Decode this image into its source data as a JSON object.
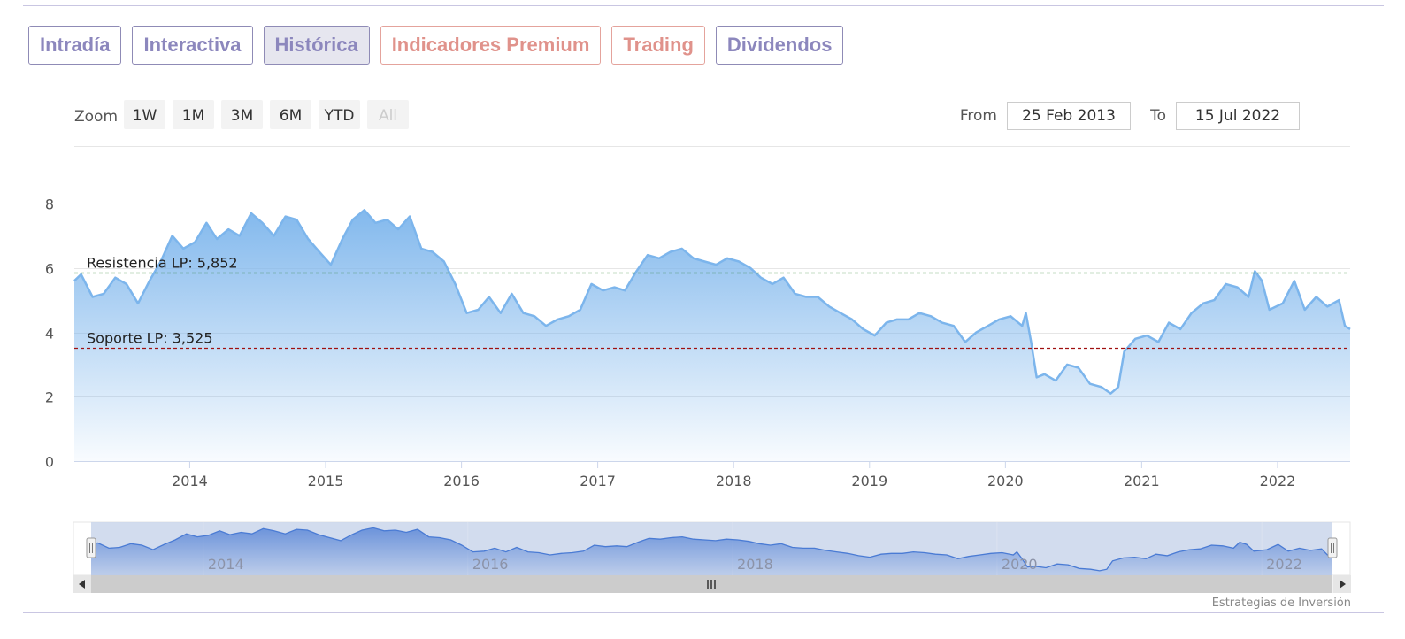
{
  "tabs": [
    {
      "label": "Intradía",
      "style": "purple",
      "active": false
    },
    {
      "label": "Interactiva",
      "style": "purple",
      "active": false
    },
    {
      "label": "Histórica",
      "style": "purple",
      "active": true
    },
    {
      "label": "Indicadores Premium",
      "style": "red",
      "active": false
    },
    {
      "label": "Trading",
      "style": "red",
      "active": false
    },
    {
      "label": "Dividendos",
      "style": "purple",
      "active": false
    }
  ],
  "range_selector": {
    "zoom_label": "Zoom",
    "buttons": [
      {
        "label": "1W",
        "disabled": false
      },
      {
        "label": "1M",
        "disabled": false
      },
      {
        "label": "3M",
        "disabled": false
      },
      {
        "label": "6M",
        "disabled": false
      },
      {
        "label": "YTD",
        "disabled": false
      },
      {
        "label": "All",
        "disabled": true
      }
    ],
    "from_label": "From",
    "from_value": "25 Feb 2013",
    "to_label": "To",
    "to_value": "15 Jul 2022"
  },
  "credits": "Estrategias de Inversión",
  "colors": {
    "line": "#7cb5ec",
    "area_top": "#7cb5ec",
    "resistance": "#1d7a1d",
    "support": "#a01010",
    "navigator_mask": "#c7d3ea",
    "navigator_series": "#4a7bd4",
    "scrollbar": "#cccccc"
  },
  "chart_data": {
    "type": "area",
    "title": "",
    "xlabel": "",
    "ylabel": "",
    "ylim": [
      0,
      8
    ],
    "y_ticks": [
      0,
      2,
      4,
      6,
      8
    ],
    "xlim": [
      "2013-02-25",
      "2022-07-15"
    ],
    "x_tick_labels": [
      "2014",
      "2015",
      "2016",
      "2017",
      "2018",
      "2019",
      "2020",
      "2021",
      "2022"
    ],
    "navigator_tick_labels": [
      "2014",
      "2016",
      "2018",
      "2020",
      "2022"
    ],
    "grid": true,
    "legend": false,
    "plot_lines": [
      {
        "label": "Resistencia LP: 5,852",
        "value": 5.852,
        "style": "dashed"
      },
      {
        "label": "Soporte LP: 3,525",
        "value": 3.525,
        "style": "dashed"
      }
    ],
    "series": [
      {
        "points": [
          [
            "2013-02-25",
            5.6
          ],
          [
            "2013-03-15",
            5.8
          ],
          [
            "2013-04-15",
            5.1
          ],
          [
            "2013-05-15",
            5.2
          ],
          [
            "2013-06-15",
            5.7
          ],
          [
            "2013-07-15",
            5.5
          ],
          [
            "2013-08-15",
            4.9
          ],
          [
            "2013-09-15",
            5.6
          ],
          [
            "2013-10-15",
            6.2
          ],
          [
            "2013-11-15",
            7.0
          ],
          [
            "2013-12-15",
            6.6
          ],
          [
            "2014-01-15",
            6.8
          ],
          [
            "2014-02-15",
            7.4
          ],
          [
            "2014-03-15",
            6.9
          ],
          [
            "2014-04-15",
            7.2
          ],
          [
            "2014-05-15",
            7.0
          ],
          [
            "2014-06-15",
            7.7
          ],
          [
            "2014-07-15",
            7.4
          ],
          [
            "2014-08-15",
            7.0
          ],
          [
            "2014-09-15",
            7.6
          ],
          [
            "2014-10-15",
            7.5
          ],
          [
            "2014-11-15",
            6.9
          ],
          [
            "2014-12-15",
            6.5
          ],
          [
            "2015-01-15",
            6.1
          ],
          [
            "2015-02-15",
            6.9
          ],
          [
            "2015-03-15",
            7.5
          ],
          [
            "2015-04-15",
            7.8
          ],
          [
            "2015-05-15",
            7.4
          ],
          [
            "2015-06-15",
            7.5
          ],
          [
            "2015-07-15",
            7.2
          ],
          [
            "2015-08-15",
            7.6
          ],
          [
            "2015-09-15",
            6.6
          ],
          [
            "2015-10-15",
            6.5
          ],
          [
            "2015-11-15",
            6.2
          ],
          [
            "2015-12-15",
            5.5
          ],
          [
            "2016-01-15",
            4.6
          ],
          [
            "2016-02-15",
            4.7
          ],
          [
            "2016-03-15",
            5.1
          ],
          [
            "2016-04-15",
            4.6
          ],
          [
            "2016-05-15",
            5.2
          ],
          [
            "2016-06-15",
            4.6
          ],
          [
            "2016-07-15",
            4.5
          ],
          [
            "2016-08-15",
            4.2
          ],
          [
            "2016-09-15",
            4.4
          ],
          [
            "2016-10-15",
            4.5
          ],
          [
            "2016-11-15",
            4.7
          ],
          [
            "2016-12-15",
            5.5
          ],
          [
            "2017-01-15",
            5.3
          ],
          [
            "2017-02-15",
            5.4
          ],
          [
            "2017-03-15",
            5.3
          ],
          [
            "2017-04-15",
            5.9
          ],
          [
            "2017-05-15",
            6.4
          ],
          [
            "2017-06-15",
            6.3
          ],
          [
            "2017-07-15",
            6.5
          ],
          [
            "2017-08-15",
            6.6
          ],
          [
            "2017-09-15",
            6.3
          ],
          [
            "2017-10-15",
            6.2
          ],
          [
            "2017-11-15",
            6.1
          ],
          [
            "2017-12-15",
            6.3
          ],
          [
            "2018-01-15",
            6.2
          ],
          [
            "2018-02-15",
            6.0
          ],
          [
            "2018-03-15",
            5.7
          ],
          [
            "2018-04-15",
            5.5
          ],
          [
            "2018-05-15",
            5.7
          ],
          [
            "2018-06-15",
            5.2
          ],
          [
            "2018-07-15",
            5.1
          ],
          [
            "2018-08-15",
            5.1
          ],
          [
            "2018-09-15",
            4.8
          ],
          [
            "2018-10-15",
            4.6
          ],
          [
            "2018-11-15",
            4.4
          ],
          [
            "2018-12-15",
            4.1
          ],
          [
            "2019-01-15",
            3.9
          ],
          [
            "2019-02-15",
            4.3
          ],
          [
            "2019-03-15",
            4.4
          ],
          [
            "2019-04-15",
            4.4
          ],
          [
            "2019-05-15",
            4.6
          ],
          [
            "2019-06-15",
            4.5
          ],
          [
            "2019-07-15",
            4.3
          ],
          [
            "2019-08-15",
            4.2
          ],
          [
            "2019-09-15",
            3.7
          ],
          [
            "2019-10-15",
            4.0
          ],
          [
            "2019-11-15",
            4.2
          ],
          [
            "2019-12-15",
            4.4
          ],
          [
            "2020-01-15",
            4.5
          ],
          [
            "2020-02-15",
            4.2
          ],
          [
            "2020-02-25",
            4.6
          ],
          [
            "2020-03-10",
            3.7
          ],
          [
            "2020-03-25",
            2.6
          ],
          [
            "2020-04-15",
            2.7
          ],
          [
            "2020-05-15",
            2.5
          ],
          [
            "2020-06-15",
            3.0
          ],
          [
            "2020-07-15",
            2.9
          ],
          [
            "2020-08-15",
            2.4
          ],
          [
            "2020-09-15",
            2.3
          ],
          [
            "2020-10-10",
            2.1
          ],
          [
            "2020-10-30",
            2.3
          ],
          [
            "2020-11-15",
            3.4
          ],
          [
            "2020-12-15",
            3.8
          ],
          [
            "2021-01-15",
            3.9
          ],
          [
            "2021-02-15",
            3.7
          ],
          [
            "2021-03-15",
            4.3
          ],
          [
            "2021-04-15",
            4.1
          ],
          [
            "2021-05-15",
            4.6
          ],
          [
            "2021-06-15",
            4.9
          ],
          [
            "2021-07-15",
            5.0
          ],
          [
            "2021-08-15",
            5.5
          ],
          [
            "2021-09-15",
            5.4
          ],
          [
            "2021-10-15",
            5.1
          ],
          [
            "2021-11-01",
            5.9
          ],
          [
            "2021-11-20",
            5.6
          ],
          [
            "2021-12-10",
            4.7
          ],
          [
            "2022-01-15",
            4.9
          ],
          [
            "2022-02-15",
            5.6
          ],
          [
            "2022-03-15",
            4.7
          ],
          [
            "2022-04-15",
            5.1
          ],
          [
            "2022-05-15",
            4.8
          ],
          [
            "2022-06-15",
            5.0
          ],
          [
            "2022-07-01",
            4.2
          ],
          [
            "2022-07-15",
            4.1
          ]
        ]
      }
    ]
  }
}
